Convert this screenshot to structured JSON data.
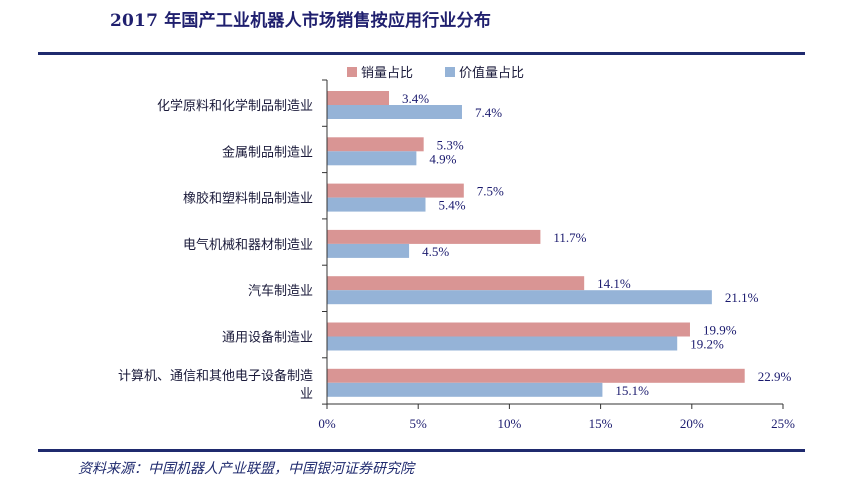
{
  "title": "2017 年国产工业机器人市场销售按应用行业分布",
  "source": "资料来源：中国机器人产业联盟，中国银河证券研究院",
  "colors": {
    "sales": "#d99594",
    "value": "#95b3d7",
    "accent": "#1f2a6e"
  },
  "chart_data": {
    "type": "bar",
    "orientation": "horizontal",
    "categories": [
      "化学原料和化学制品制造业",
      "金属制品制造业",
      "橡胶和塑料制品制造业",
      "电气机械和器材制造业",
      "汽车制造业",
      "通用设备制造业",
      [
        "计算机、通信和其他电子设备制造",
        "业"
      ]
    ],
    "series": [
      {
        "name": "销量占比",
        "values": [
          3.4,
          5.3,
          7.5,
          11.7,
          14.1,
          19.9,
          22.9
        ],
        "labels": [
          "3.4%",
          "5.3%",
          "7.5%",
          "11.7%",
          "14.1%",
          "19.9%",
          "22.9%"
        ]
      },
      {
        "name": "价值量占比",
        "values": [
          7.4,
          4.9,
          5.4,
          4.5,
          21.1,
          19.2,
          15.1
        ],
        "labels": [
          "7.4%",
          "4.9%",
          "5.4%",
          "4.5%",
          "21.1%",
          "19.2%",
          "15.1%"
        ]
      }
    ],
    "xlim": [
      0,
      25
    ],
    "xticks": [
      "0%",
      "5%",
      "10%",
      "15%",
      "20%",
      "25%"
    ],
    "xtick_values": [
      0,
      5,
      10,
      15,
      20,
      25
    ],
    "legend": "top",
    "grid": false
  }
}
